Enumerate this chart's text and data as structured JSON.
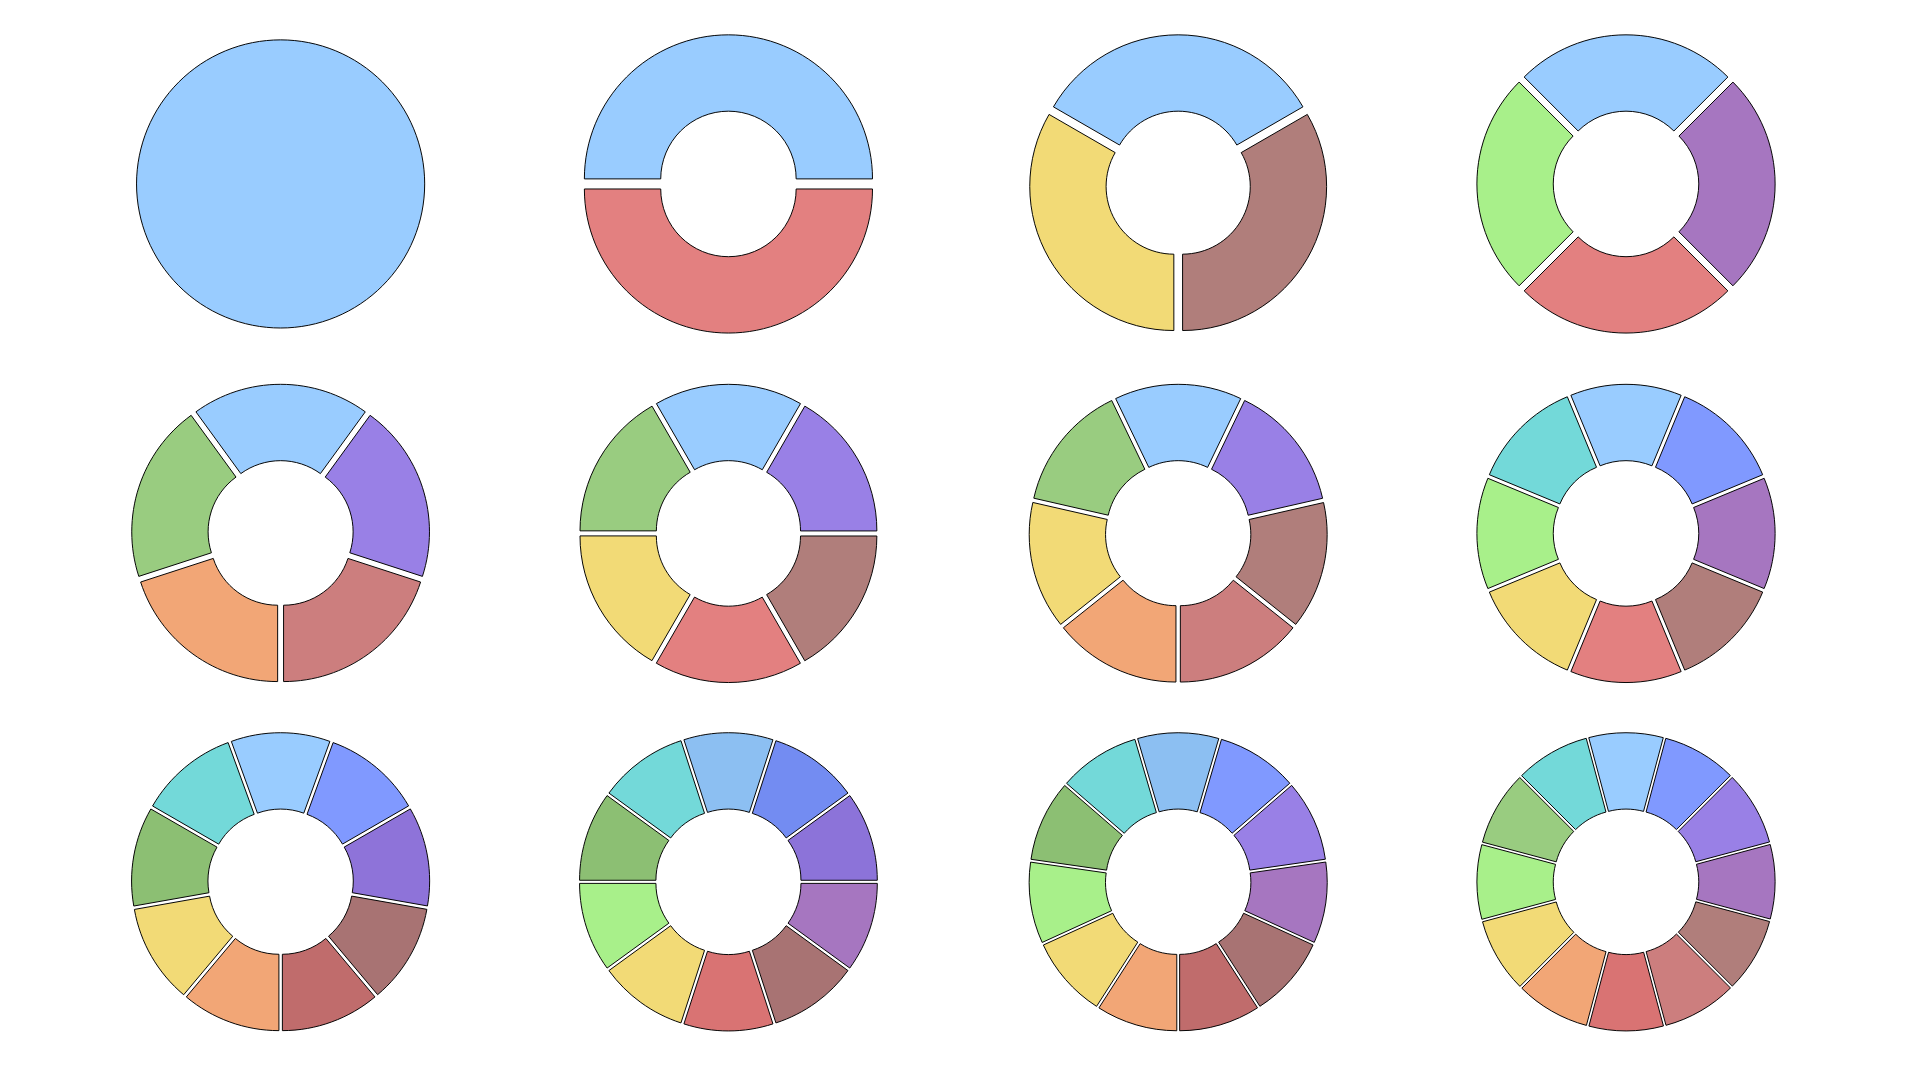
{
  "chart_data": [
    {
      "type": "pie",
      "categories": [
        null
      ],
      "values": [
        100
      ],
      "colors": [
        "#99ccff"
      ]
    },
    {
      "type": "donut",
      "categories": [
        null,
        null
      ],
      "values": [
        50,
        50
      ],
      "colors": [
        "#99ccff",
        "#e38080"
      ]
    },
    {
      "type": "donut",
      "categories": [
        null,
        null,
        null
      ],
      "values": [
        33.33,
        33.33,
        33.34
      ],
      "colors": [
        "#99ccff",
        "#b07e7b",
        "#f2da76"
      ]
    },
    {
      "type": "donut",
      "categories": [
        null,
        null,
        null,
        null
      ],
      "values": [
        25,
        25,
        25,
        25
      ],
      "colors": [
        "#99ccff",
        "#a676c0",
        "#e38080",
        "#a8f08a"
      ]
    },
    {
      "type": "donut",
      "categories": [
        null,
        null,
        null,
        null,
        null
      ],
      "values": [
        20,
        20,
        20,
        20,
        20
      ],
      "colors": [
        "#99ccff",
        "#9980e6",
        "#cc7e7e",
        "#f2a676",
        "#99cc80"
      ]
    },
    {
      "type": "donut",
      "categories": [
        null,
        null,
        null,
        null,
        null,
        null
      ],
      "values": [
        16.67,
        16.67,
        16.67,
        16.67,
        16.66,
        16.66
      ],
      "colors": [
        "#99ccff",
        "#9980e6",
        "#b07e7b",
        "#e38080",
        "#f2da76",
        "#99cc80"
      ]
    },
    {
      "type": "donut",
      "categories": [
        null,
        null,
        null,
        null,
        null,
        null,
        null
      ],
      "values": [
        14.29,
        14.29,
        14.28,
        14.29,
        14.28,
        14.29,
        14.28
      ],
      "colors": [
        "#99ccff",
        "#9980e6",
        "#b07e7b",
        "#cc7e7e",
        "#f2a676",
        "#f2da76",
        "#99cc80"
      ]
    },
    {
      "type": "donut",
      "categories": [
        null,
        null,
        null,
        null,
        null,
        null,
        null,
        null
      ],
      "values": [
        12.5,
        12.5,
        12.5,
        12.5,
        12.5,
        12.5,
        12.5,
        12.5
      ],
      "colors": [
        "#99ccff",
        "#8099ff",
        "#a676c0",
        "#b07e7b",
        "#e38080",
        "#f2da76",
        "#a8f08a",
        "#73d9d9"
      ]
    },
    {
      "type": "donut",
      "categories": [
        null,
        null,
        null,
        null,
        null,
        null,
        null,
        null,
        null
      ],
      "values": [
        11.11,
        11.11,
        11.11,
        11.11,
        11.11,
        11.11,
        11.11,
        11.11,
        11.12
      ],
      "colors": [
        "#99ccff",
        "#8099ff",
        "#8e73d9",
        "#a87373",
        "#c06c6c",
        "#f2a676",
        "#f2da76",
        "#8cbf73",
        "#73d9d9"
      ]
    },
    {
      "type": "donut",
      "categories": [
        null,
        null,
        null,
        null,
        null,
        null,
        null,
        null,
        null,
        null
      ],
      "values": [
        10,
        10,
        10,
        10,
        10,
        10,
        10,
        10,
        10,
        10
      ],
      "colors": [
        "#8cbff2",
        "#738cf2",
        "#8c73d9",
        "#a676c0",
        "#a87373",
        "#d97373",
        "#f2da76",
        "#a8f08a",
        "#8cbf73",
        "#73d9d9"
      ]
    },
    {
      "type": "donut",
      "categories": [
        null,
        null,
        null,
        null,
        null,
        null,
        null,
        null,
        null,
        null,
        null
      ],
      "values": [
        9.09,
        9.09,
        9.09,
        9.09,
        9.09,
        9.09,
        9.09,
        9.09,
        9.09,
        9.09,
        9.1
      ],
      "colors": [
        "#8cbff2",
        "#8099ff",
        "#9980e6",
        "#a676c0",
        "#a87373",
        "#c06c6c",
        "#f2a676",
        "#f2da76",
        "#a8f08a",
        "#8cbf73",
        "#73d9d9"
      ]
    },
    {
      "type": "donut",
      "categories": [
        null,
        null,
        null,
        null,
        null,
        null,
        null,
        null,
        null,
        null,
        null,
        null
      ],
      "values": [
        8.33,
        8.33,
        8.33,
        8.33,
        8.33,
        8.33,
        8.33,
        8.33,
        8.34,
        8.34,
        8.34,
        8.34
      ],
      "colors": [
        "#99ccff",
        "#8099ff",
        "#9980e6",
        "#a676c0",
        "#b07e7b",
        "#cc7e7e",
        "#d97373",
        "#f2a676",
        "#f2da76",
        "#a8f08a",
        "#99cc80",
        "#73d9d9"
      ]
    }
  ]
}
